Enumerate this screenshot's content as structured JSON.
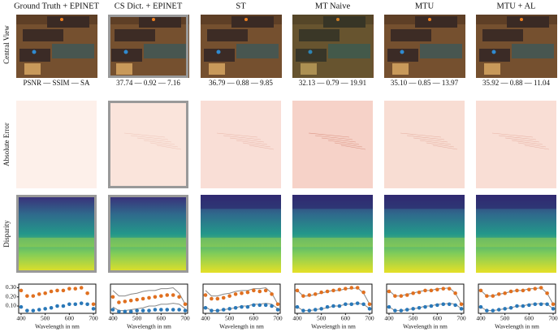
{
  "columns": [
    {
      "title": "Ground Truth + EPINET",
      "metrics": "PSNR — SSIM — SA"
    },
    {
      "title": "CS Dict. + EPINET",
      "metrics": "37.74 — 0.92 — 7.16"
    },
    {
      "title": "ST",
      "metrics": "36.79 — 0.88 — 9.85"
    },
    {
      "title": "MT Naive",
      "metrics": "32.13 — 0.79 — 19.91"
    },
    {
      "title": "MTU",
      "metrics": "35.10 — 0.85 — 13.97"
    },
    {
      "title": "MTU + AL",
      "metrics": "35.92 — 0.88 — 11.04"
    }
  ],
  "row_labels": [
    "Central View",
    "Absolute Error",
    "Disparity"
  ],
  "chart_data": [
    {
      "type": "scatter",
      "x_label": "Wavelength in nm",
      "x": [
        400,
        425,
        450,
        475,
        500,
        525,
        550,
        575,
        600,
        625,
        650,
        675,
        700
      ],
      "xlim": [
        390,
        710
      ],
      "xticks": [
        400,
        500,
        600,
        700
      ],
      "ylim": [
        0.02,
        0.34
      ],
      "yticks": [
        {
          "value": 0.1,
          "label": "0.10"
        },
        {
          "value": 0.2,
          "label": "0.20"
        },
        {
          "value": 0.3,
          "label": "0.30"
        }
      ],
      "series": [
        {
          "color": "#e07020",
          "style": "dots",
          "values": [
            0.27,
            0.21,
            0.21,
            0.23,
            0.24,
            0.26,
            0.27,
            0.27,
            0.29,
            0.29,
            0.3,
            0.24,
            0.12
          ]
        },
        {
          "color": "#2a78b8",
          "style": "dots",
          "values": [
            0.09,
            0.05,
            0.05,
            0.06,
            0.07,
            0.08,
            0.1,
            0.1,
            0.12,
            0.12,
            0.13,
            0.12,
            0.07
          ]
        }
      ]
    },
    {
      "type": "scatter",
      "x_label": "Wavelength in nm",
      "x": [
        400,
        425,
        450,
        475,
        500,
        525,
        550,
        575,
        600,
        625,
        650,
        675,
        700
      ],
      "xlim": [
        390,
        710
      ],
      "xticks": [
        400,
        500,
        600,
        700
      ],
      "ylim": [
        0.02,
        0.34
      ],
      "series": [
        {
          "color": "#888888",
          "style": "line",
          "values": [
            0.27,
            0.21,
            0.21,
            0.23,
            0.24,
            0.26,
            0.27,
            0.27,
            0.29,
            0.29,
            0.3,
            0.24,
            0.12
          ]
        },
        {
          "color": "#888888",
          "style": "line",
          "values": [
            0.09,
            0.05,
            0.05,
            0.06,
            0.07,
            0.08,
            0.1,
            0.1,
            0.12,
            0.12,
            0.13,
            0.12,
            0.07
          ]
        },
        {
          "color": "#e07020",
          "style": "dots",
          "values": [
            0.2,
            0.14,
            0.15,
            0.16,
            0.17,
            0.18,
            0.19,
            0.2,
            0.21,
            0.22,
            0.22,
            0.2,
            0.12
          ]
        },
        {
          "color": "#2a78b8",
          "style": "dots",
          "values": [
            0.06,
            0.04,
            0.04,
            0.04,
            0.05,
            0.05,
            0.05,
            0.06,
            0.06,
            0.06,
            0.06,
            0.06,
            0.05
          ]
        }
      ]
    },
    {
      "type": "scatter",
      "x_label": "Wavelength in nm",
      "x": [
        400,
        425,
        450,
        475,
        500,
        525,
        550,
        575,
        600,
        625,
        650,
        675,
        700
      ],
      "xlim": [
        390,
        710
      ],
      "xticks": [
        400,
        500,
        600,
        700
      ],
      "ylim": [
        0.02,
        0.34
      ],
      "series": [
        {
          "color": "#888888",
          "style": "line",
          "values": [
            0.27,
            0.21,
            0.21,
            0.23,
            0.24,
            0.26,
            0.27,
            0.27,
            0.29,
            0.29,
            0.3,
            0.24,
            0.12
          ]
        },
        {
          "color": "#888888",
          "style": "line",
          "values": [
            0.09,
            0.05,
            0.05,
            0.06,
            0.07,
            0.08,
            0.1,
            0.1,
            0.12,
            0.12,
            0.13,
            0.12,
            0.07
          ]
        },
        {
          "color": "#e07020",
          "style": "dots",
          "values": [
            0.22,
            0.18,
            0.18,
            0.19,
            0.21,
            0.23,
            0.24,
            0.25,
            0.27,
            0.26,
            0.27,
            0.23,
            0.12
          ]
        },
        {
          "color": "#2a78b8",
          "style": "dots",
          "values": [
            0.08,
            0.05,
            0.05,
            0.06,
            0.07,
            0.08,
            0.09,
            0.09,
            0.11,
            0.11,
            0.11,
            0.1,
            0.06
          ]
        }
      ]
    },
    {
      "type": "scatter",
      "x_label": "Wavelength in nm",
      "x": [
        400,
        425,
        450,
        475,
        500,
        525,
        550,
        575,
        600,
        625,
        650,
        675,
        700
      ],
      "xlim": [
        390,
        710
      ],
      "xticks": [
        400,
        500,
        600,
        700
      ],
      "ylim": [
        0.02,
        0.34
      ],
      "series": [
        {
          "color": "#888888",
          "style": "line",
          "values": [
            0.27,
            0.21,
            0.21,
            0.23,
            0.24,
            0.26,
            0.27,
            0.27,
            0.29,
            0.29,
            0.3,
            0.24,
            0.12
          ]
        },
        {
          "color": "#888888",
          "style": "line",
          "values": [
            0.09,
            0.05,
            0.05,
            0.06,
            0.07,
            0.08,
            0.1,
            0.1,
            0.12,
            0.12,
            0.13,
            0.12,
            0.07
          ]
        },
        {
          "color": "#e07020",
          "style": "dots",
          "values": [
            0.27,
            0.21,
            0.22,
            0.23,
            0.25,
            0.26,
            0.27,
            0.28,
            0.29,
            0.3,
            0.3,
            0.25,
            0.12
          ]
        },
        {
          "color": "#2a78b8",
          "style": "dots",
          "values": [
            0.09,
            0.05,
            0.05,
            0.06,
            0.07,
            0.09,
            0.1,
            0.1,
            0.12,
            0.12,
            0.13,
            0.12,
            0.07
          ]
        }
      ]
    },
    {
      "type": "scatter",
      "x_label": "Wavelength in nm",
      "x": [
        400,
        425,
        450,
        475,
        500,
        525,
        550,
        575,
        600,
        625,
        650,
        675,
        700
      ],
      "xlim": [
        390,
        710
      ],
      "xticks": [
        400,
        500,
        600,
        700
      ],
      "ylim": [
        0.02,
        0.34
      ],
      "series": [
        {
          "color": "#888888",
          "style": "line",
          "values": [
            0.27,
            0.21,
            0.21,
            0.23,
            0.24,
            0.26,
            0.27,
            0.27,
            0.29,
            0.29,
            0.3,
            0.24,
            0.12
          ]
        },
        {
          "color": "#888888",
          "style": "line",
          "values": [
            0.09,
            0.05,
            0.05,
            0.06,
            0.07,
            0.08,
            0.1,
            0.1,
            0.12,
            0.12,
            0.13,
            0.12,
            0.07
          ]
        },
        {
          "color": "#e07020",
          "style": "dots",
          "values": [
            0.26,
            0.21,
            0.21,
            0.22,
            0.24,
            0.25,
            0.27,
            0.27,
            0.28,
            0.29,
            0.29,
            0.24,
            0.12
          ]
        },
        {
          "color": "#2a78b8",
          "style": "dots",
          "values": [
            0.09,
            0.05,
            0.05,
            0.06,
            0.07,
            0.08,
            0.09,
            0.1,
            0.11,
            0.12,
            0.12,
            0.11,
            0.07
          ]
        }
      ]
    },
    {
      "type": "scatter",
      "x_label": "Wavelength in nm",
      "x": [
        400,
        425,
        450,
        475,
        500,
        525,
        550,
        575,
        600,
        625,
        650,
        675,
        700
      ],
      "xlim": [
        390,
        710
      ],
      "xticks": [
        400,
        500,
        600,
        700
      ],
      "ylim": [
        0.02,
        0.34
      ],
      "series": [
        {
          "color": "#888888",
          "style": "line",
          "values": [
            0.27,
            0.21,
            0.21,
            0.23,
            0.24,
            0.26,
            0.27,
            0.27,
            0.29,
            0.29,
            0.3,
            0.24,
            0.12
          ]
        },
        {
          "color": "#888888",
          "style": "line",
          "values": [
            0.09,
            0.05,
            0.05,
            0.06,
            0.07,
            0.08,
            0.1,
            0.1,
            0.12,
            0.12,
            0.13,
            0.12,
            0.07
          ]
        },
        {
          "color": "#e07020",
          "style": "dots",
          "values": [
            0.27,
            0.21,
            0.21,
            0.23,
            0.24,
            0.26,
            0.27,
            0.27,
            0.28,
            0.29,
            0.3,
            0.24,
            0.12
          ]
        },
        {
          "color": "#2a78b8",
          "style": "dots",
          "values": [
            0.09,
            0.05,
            0.05,
            0.06,
            0.07,
            0.08,
            0.1,
            0.1,
            0.11,
            0.12,
            0.12,
            0.12,
            0.07
          ]
        }
      ]
    }
  ]
}
